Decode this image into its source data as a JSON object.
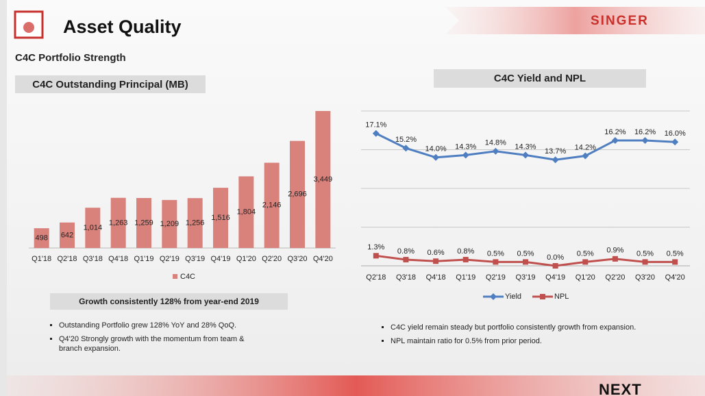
{
  "header": {
    "title": "Asset Quality",
    "subtitle": "C4C Portfolio Strength",
    "logo": "SINGER",
    "footer_logo": "NEXT"
  },
  "chart_data": [
    {
      "type": "bar",
      "title": "C4C Outstanding Principal (MB)",
      "categories": [
        "Q1'18",
        "Q2'18",
        "Q3'18",
        "Q4'18",
        "Q1'19",
        "Q2'19",
        "Q3'19",
        "Q4'19",
        "Q1'20",
        "Q2'20",
        "Q3'20",
        "Q4'20"
      ],
      "series": [
        {
          "name": "C4C",
          "color": "#d9817b",
          "values": [
            498,
            642,
            1014,
            1263,
            1259,
            1209,
            1256,
            1516,
            1804,
            2146,
            2696,
            3449
          ],
          "value_labels": [
            "498",
            "642",
            "1,014",
            "1,263",
            "1,259",
            "1,209",
            "1,256",
            "1,516",
            "1,804",
            "2,146",
            "2,696",
            "3,449"
          ]
        }
      ],
      "legend": "bottom"
    },
    {
      "type": "line",
      "title": "C4C Yield and NPL",
      "categories": [
        "Q2'18",
        "Q3'18",
        "Q4'18",
        "Q1'19",
        "Q2'19",
        "Q3'19",
        "Q4'19",
        "Q1'20",
        "Q2'20",
        "Q3'20",
        "Q4'20"
      ],
      "series": [
        {
          "name": "Yield",
          "color": "#4f7fc1",
          "values": [
            17.1,
            15.2,
            14.0,
            14.3,
            14.8,
            14.3,
            13.7,
            14.2,
            16.2,
            16.2,
            16.0
          ],
          "value_labels": [
            "17.1%",
            "15.2%",
            "14.0%",
            "14.3%",
            "14.8%",
            "14.3%",
            "13.7%",
            "14.2%",
            "16.2%",
            "16.2%",
            "16.0%"
          ]
        },
        {
          "name": "NPL",
          "color": "#c0504d",
          "values": [
            1.3,
            0.8,
            0.6,
            0.8,
            0.5,
            0.5,
            0.0,
            0.5,
            0.9,
            0.5,
            0.5
          ],
          "value_labels": [
            "1.3%",
            "0.8%",
            "0.6%",
            "0.8%",
            "0.5%",
            "0.5%",
            "0.0%",
            "0.5%",
            "0.9%",
            "0.5%",
            "0.5%"
          ]
        }
      ],
      "ylim": [
        0,
        20
      ],
      "yticks": [
        0,
        5,
        10,
        15,
        20
      ],
      "grid": true,
      "legend": "bottom"
    }
  ],
  "left_notes": {
    "highlight": "Growth consistently 128% from year-end 2019",
    "bullets": [
      "Outstanding Portfolio grew 128% YoY and 28% QoQ.",
      "Q4'20 Strongly growth with the momentum from team & branch expansion."
    ]
  },
  "right_notes": {
    "bullets": [
      "C4C yield remain steady but portfolio consistently growth from expansion.",
      "NPL maintain ratio for 0.5% from prior period."
    ]
  }
}
